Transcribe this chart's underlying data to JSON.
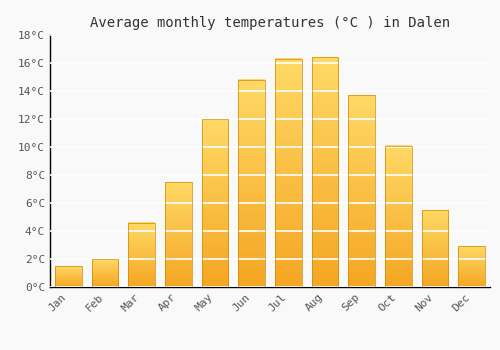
{
  "title": "Average monthly temperatures (°C ) in Dalen",
  "months": [
    "Jan",
    "Feb",
    "Mar",
    "Apr",
    "May",
    "Jun",
    "Jul",
    "Aug",
    "Sep",
    "Oct",
    "Nov",
    "Dec"
  ],
  "values": [
    1.5,
    2.0,
    4.6,
    7.5,
    12.0,
    14.8,
    16.3,
    16.4,
    13.7,
    10.1,
    5.5,
    2.9
  ],
  "bar_color_main": "#F5A623",
  "bar_color_light": "#FFD966",
  "bar_color_dark": "#E8971A",
  "ylim": [
    0,
    18
  ],
  "yticks": [
    0,
    2,
    4,
    6,
    8,
    10,
    12,
    14,
    16,
    18
  ],
  "ytick_labels": [
    "0°C",
    "2°C",
    "4°C",
    "6°C",
    "8°C",
    "10°C",
    "12°C",
    "14°C",
    "16°C",
    "18°C"
  ],
  "background_color": "#f9f9f9",
  "plot_bg_color": "#f9f9f9",
  "grid_color": "#ffffff",
  "axis_color": "#000000",
  "title_fontsize": 10,
  "tick_fontsize": 8,
  "bar_width": 0.72
}
